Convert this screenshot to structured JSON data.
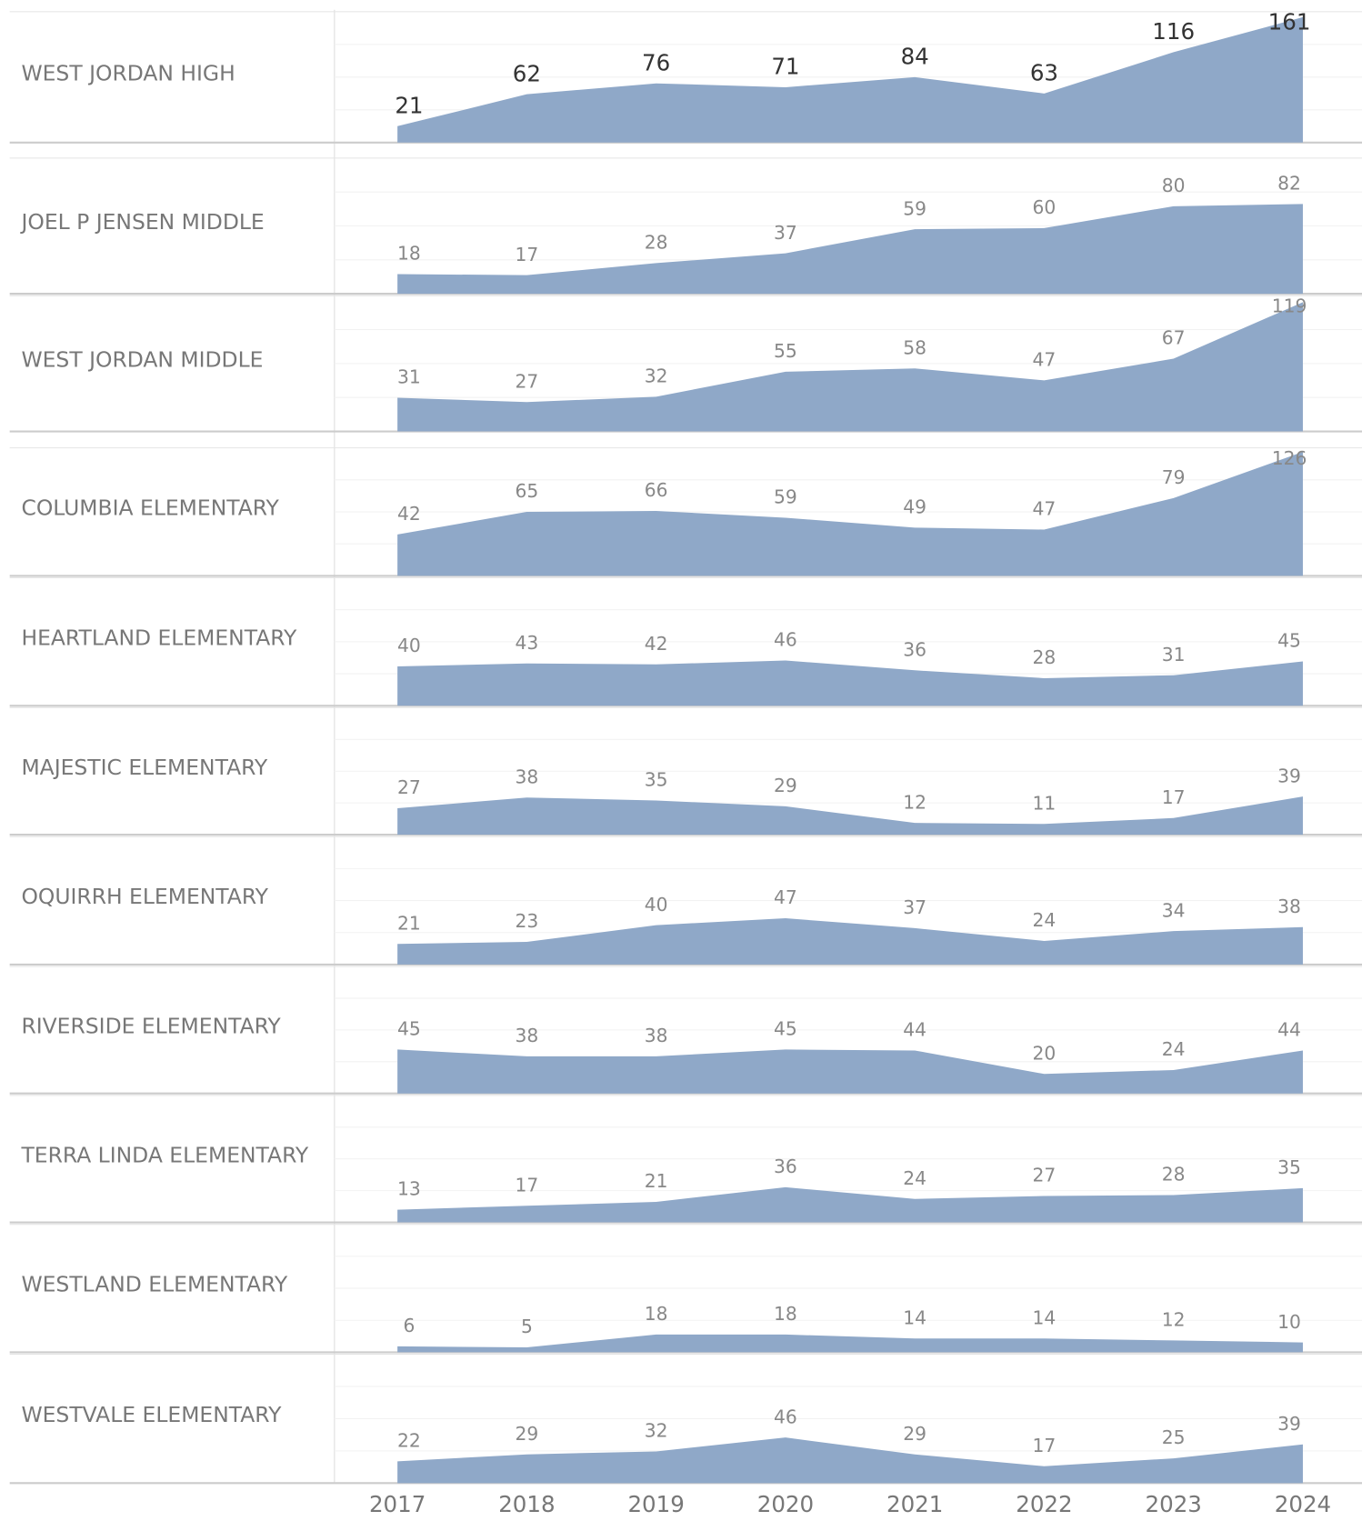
{
  "chart_data": {
    "type": "area",
    "categories": [
      "2017",
      "2018",
      "2019",
      "2020",
      "2021",
      "2022",
      "2023",
      "2024"
    ],
    "color": "#8fa8c8",
    "series": [
      {
        "name": "WEST JORDAN HIGH",
        "values": [
          21,
          62,
          76,
          71,
          84,
          63,
          116,
          161
        ],
        "ylim": [
          0,
          168
        ]
      },
      {
        "name": "JOEL P JENSEN MIDDLE",
        "values": [
          18,
          17,
          28,
          37,
          59,
          60,
          80,
          82
        ],
        "ylim": [
          0,
          124
        ]
      },
      {
        "name": "WEST JORDAN MIDDLE",
        "values": [
          31,
          27,
          32,
          55,
          58,
          47,
          67,
          119
        ],
        "ylim": [
          0,
          125
        ]
      },
      {
        "name": "COLUMBIA ELEMENTARY",
        "values": [
          42,
          65,
          66,
          59,
          49,
          47,
          79,
          126
        ],
        "ylim": [
          0,
          130
        ]
      },
      {
        "name": "HEARTLAND ELEMENTARY",
        "values": [
          40,
          43,
          42,
          46,
          36,
          28,
          31,
          45
        ],
        "ylim": [
          0,
          130
        ]
      },
      {
        "name": "MAJESTIC ELEMENTARY",
        "values": [
          27,
          38,
          35,
          29,
          12,
          11,
          17,
          39
        ],
        "ylim": [
          0,
          130
        ]
      },
      {
        "name": "OQUIRRH ELEMENTARY",
        "values": [
          21,
          23,
          40,
          47,
          37,
          24,
          34,
          38
        ],
        "ylim": [
          0,
          130
        ]
      },
      {
        "name": "RIVERSIDE ELEMENTARY",
        "values": [
          45,
          38,
          38,
          45,
          44,
          20,
          24,
          44
        ],
        "ylim": [
          0,
          130
        ]
      },
      {
        "name": "TERRA LINDA ELEMENTARY",
        "values": [
          13,
          17,
          21,
          36,
          24,
          27,
          28,
          35
        ],
        "ylim": [
          0,
          130
        ]
      },
      {
        "name": "WESTLAND ELEMENTARY",
        "values": [
          6,
          5,
          18,
          18,
          14,
          14,
          12,
          10
        ],
        "ylim": [
          0,
          130
        ]
      },
      {
        "name": "WESTVALE ELEMENTARY",
        "values": [
          22,
          29,
          32,
          46,
          29,
          17,
          25,
          39
        ],
        "ylim": [
          0,
          130
        ]
      }
    ]
  }
}
